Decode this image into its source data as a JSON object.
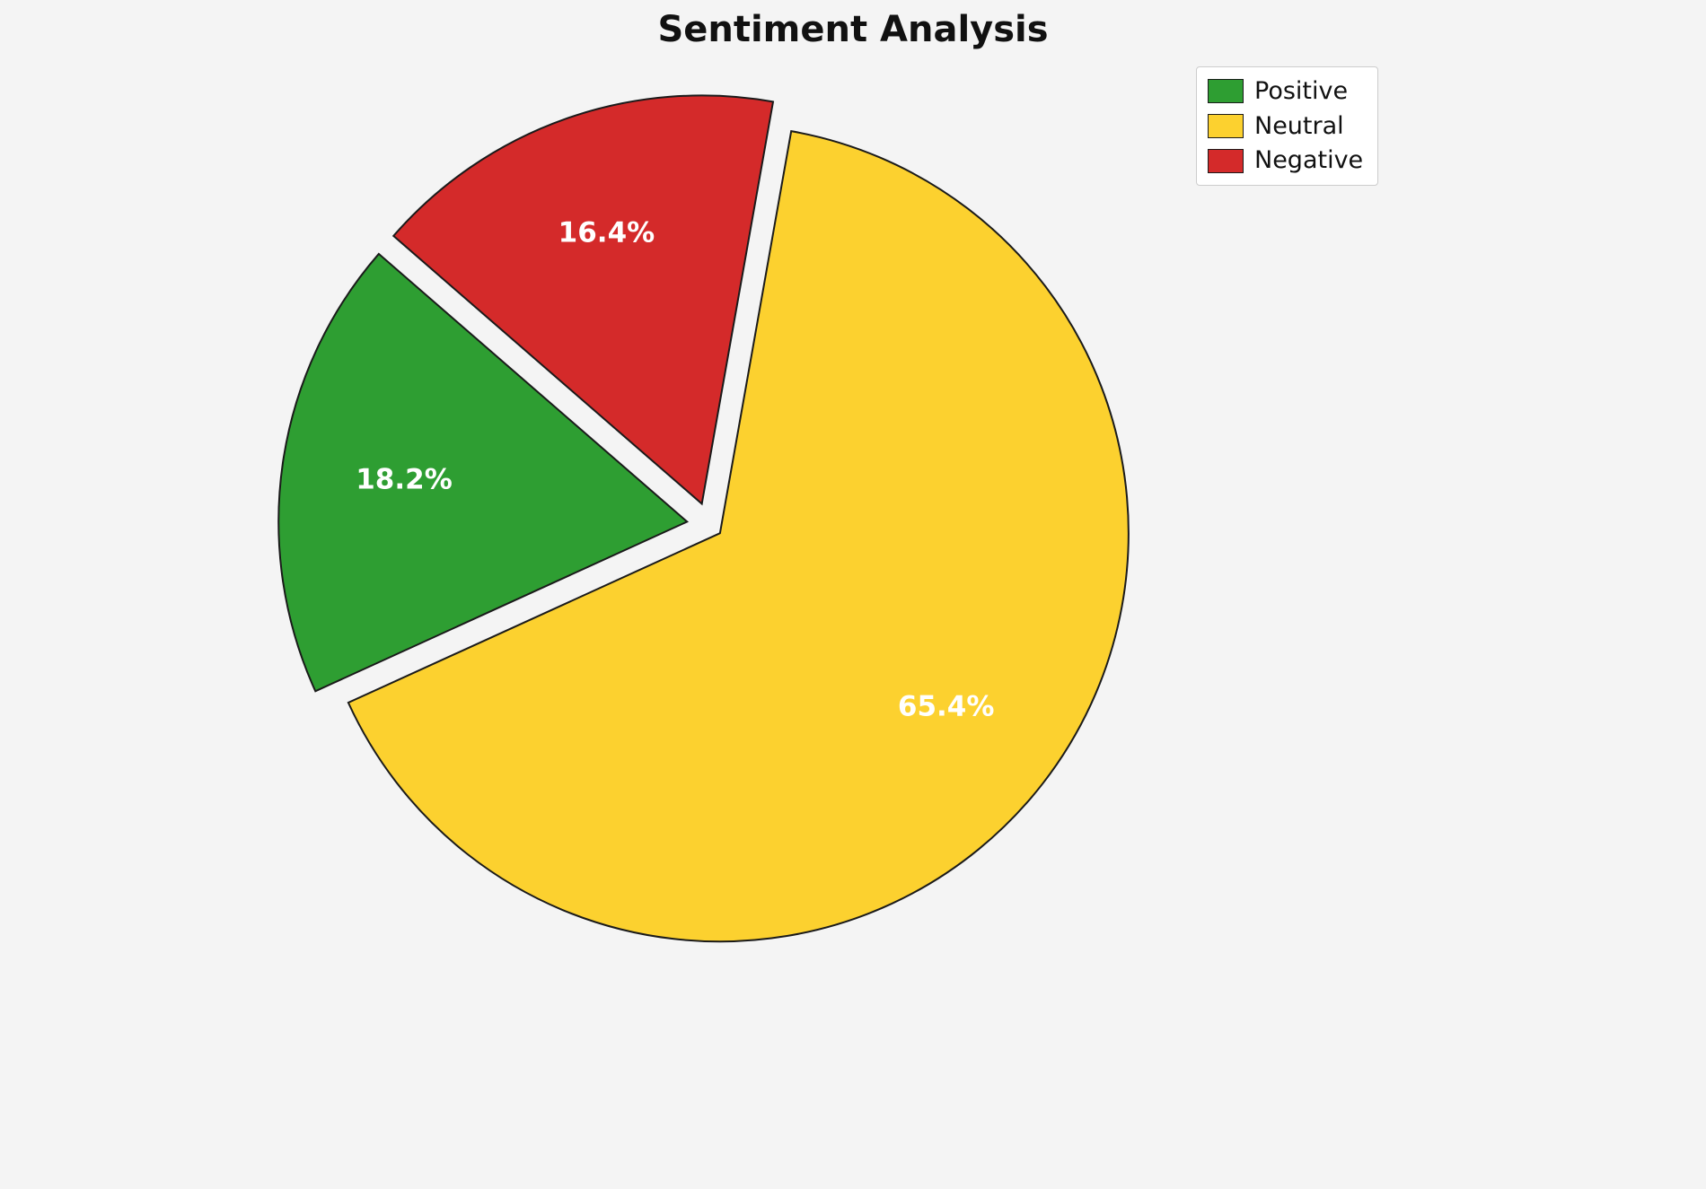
{
  "chart_data": {
    "type": "pie",
    "title": "Sentiment Analysis",
    "categories": [
      "Positive",
      "Neutral",
      "Negative"
    ],
    "values": [
      18.2,
      65.4,
      16.4
    ],
    "unit": "%",
    "start_angle": 139,
    "counterclockwise": true,
    "slices": [
      {
        "label": "Positive",
        "value": 18.2,
        "pct_label": "18.2%",
        "color": "#2e9e32",
        "explode": 0.055
      },
      {
        "label": "Neutral",
        "value": 65.4,
        "pct_label": "65.4%",
        "color": "#fcd12f",
        "explode": 0.033
      },
      {
        "label": "Negative",
        "value": 16.4,
        "pct_label": "16.4%",
        "color": "#d42a2a",
        "explode": 0.055
      }
    ],
    "legend": {
      "position": "upper right",
      "entries": [
        "Positive",
        "Neutral",
        "Negative"
      ]
    }
  }
}
